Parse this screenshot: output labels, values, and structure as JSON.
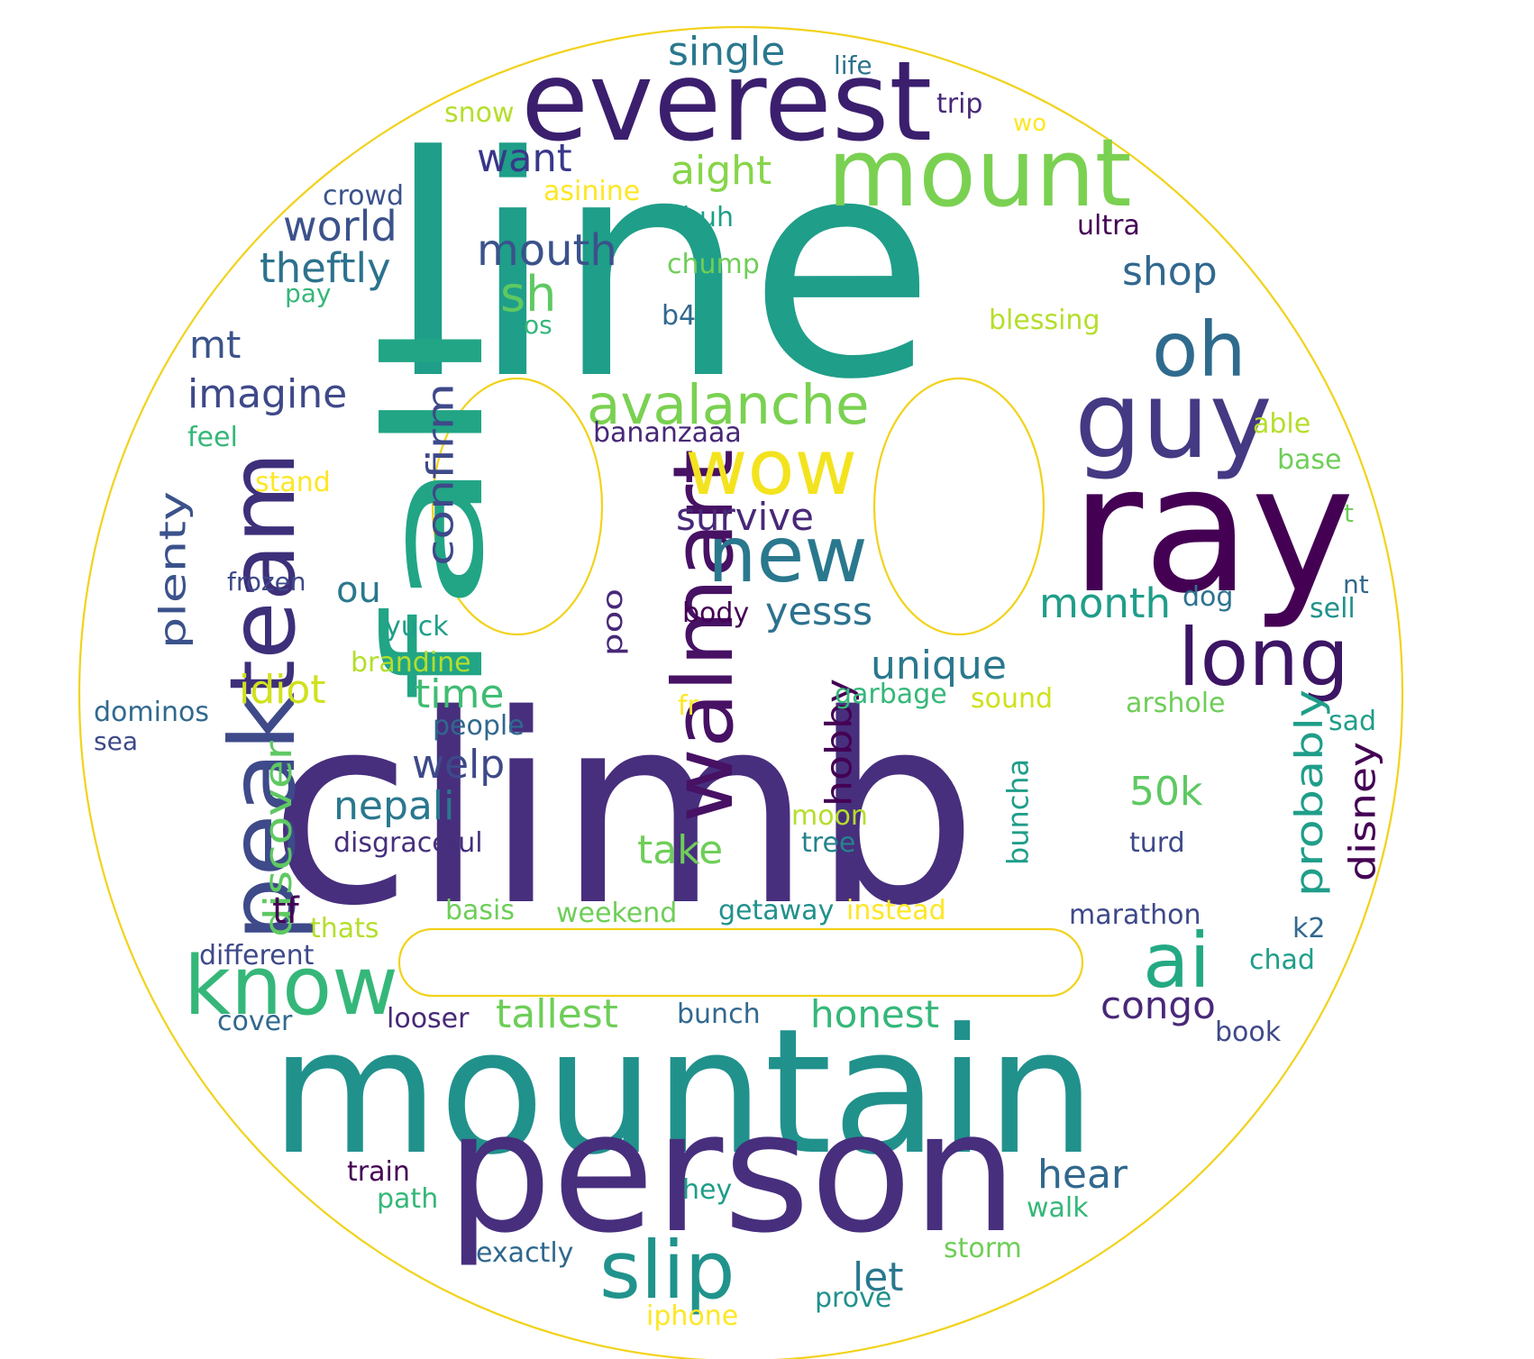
{
  "colors": {
    "outline": "#f2d21b",
    "background": "#ffffff",
    "palette": [
      "#440154",
      "#482878",
      "#3e4989",
      "#31688e",
      "#26828e",
      "#1f9e89",
      "#35b779",
      "#6ece58",
      "#b5de2b",
      "#fde725"
    ]
  },
  "words": [
    {
      "text": "line",
      "color": "#1f9e89"
    },
    {
      "text": "climb",
      "color": "#472f7d"
    },
    {
      "text": "mountain",
      "color": "#21918c"
    },
    {
      "text": "person",
      "color": "#472f7d"
    },
    {
      "text": "everest",
      "color": "#3b1f6e"
    },
    {
      "text": "ray",
      "color": "#440154"
    },
    {
      "text": "fall",
      "color": "#21a585"
    },
    {
      "text": "mount",
      "color": "#7ad151"
    },
    {
      "text": "guy",
      "color": "#443983"
    },
    {
      "text": "team",
      "color": "#3e2f7a"
    },
    {
      "text": "peak",
      "color": "#3e4a89"
    },
    {
      "text": "walmart",
      "color": "#471164"
    },
    {
      "text": "oh",
      "color": "#2f6b8e"
    },
    {
      "text": "wow",
      "color": "#f3e31f"
    },
    {
      "text": "new",
      "color": "#2a788e"
    },
    {
      "text": "long",
      "color": "#3c1564"
    },
    {
      "text": "know",
      "color": "#35b779"
    },
    {
      "text": "ai",
      "color": "#23a983"
    },
    {
      "text": "slip",
      "color": "#20938c"
    },
    {
      "text": "avalanche",
      "color": "#7ad151"
    },
    {
      "text": "single",
      "color": "#2a788e"
    },
    {
      "text": "sh",
      "color": "#5ec962"
    },
    {
      "text": "mouth",
      "color": "#3b528b"
    },
    {
      "text": "want",
      "color": "#39378a"
    },
    {
      "text": "aight",
      "color": "#86d549"
    },
    {
      "text": "world",
      "color": "#3b528b"
    },
    {
      "text": "theftly",
      "color": "#2c728e"
    },
    {
      "text": "imagine",
      "color": "#3e4989"
    },
    {
      "text": "confirm",
      "color": "#3e4989"
    },
    {
      "text": "plenty",
      "color": "#3b528b"
    },
    {
      "text": "survive",
      "color": "#482878"
    },
    {
      "text": "yesss",
      "color": "#2c728e"
    },
    {
      "text": "unique",
      "color": "#2a788e"
    },
    {
      "text": "month",
      "color": "#1f9e89"
    },
    {
      "text": "shop",
      "color": "#31688e"
    },
    {
      "text": "mt",
      "color": "#3b528b"
    },
    {
      "text": "idiot",
      "color": "#d0e11c"
    },
    {
      "text": "time",
      "color": "#3fbc73"
    },
    {
      "text": "welp",
      "color": "#3e4989"
    },
    {
      "text": "nepali",
      "color": "#2a788e"
    },
    {
      "text": "discover",
      "color": "#5ec962"
    },
    {
      "text": "hobby",
      "color": "#440154"
    },
    {
      "text": "probably",
      "color": "#1f9e89"
    },
    {
      "text": "disney",
      "color": "#440154"
    },
    {
      "text": "50k",
      "color": "#5ec962"
    },
    {
      "text": "take",
      "color": "#6ece58"
    },
    {
      "text": "tallest",
      "color": "#6ece58"
    },
    {
      "text": "honest",
      "color": "#35b779"
    },
    {
      "text": "congo",
      "color": "#482878"
    },
    {
      "text": "hear",
      "color": "#31688e"
    },
    {
      "text": "let",
      "color": "#2a788e"
    },
    {
      "text": "ou",
      "color": "#2a788e"
    },
    {
      "text": "tf",
      "color": "#440154"
    },
    {
      "text": "buncha",
      "color": "#1f9e89"
    },
    {
      "text": "poo",
      "color": "#482878"
    },
    {
      "text": "life",
      "color": "#2c728e"
    },
    {
      "text": "trip",
      "color": "#482878"
    },
    {
      "text": "wo",
      "color": "#fde725"
    },
    {
      "text": "snow",
      "color": "#b5de2b"
    },
    {
      "text": "asinine",
      "color": "#fde725"
    },
    {
      "text": "huh",
      "color": "#1f9e89"
    },
    {
      "text": "crowd",
      "color": "#3b528b"
    },
    {
      "text": "ultra",
      "color": "#440154"
    },
    {
      "text": "chump",
      "color": "#6ece58"
    },
    {
      "text": "pay",
      "color": "#35b779"
    },
    {
      "text": "b4",
      "color": "#31688e"
    },
    {
      "text": "os",
      "color": "#35b779"
    },
    {
      "text": "blessing",
      "color": "#b5de2b"
    },
    {
      "text": "bananzaaa",
      "color": "#482878"
    },
    {
      "text": "feel",
      "color": "#35b779"
    },
    {
      "text": "able",
      "color": "#b5de2b"
    },
    {
      "text": "base",
      "color": "#6ece58"
    },
    {
      "text": "stand",
      "color": "#fde725"
    },
    {
      "text": "t",
      "color": "#6ece58"
    },
    {
      "text": "frozen",
      "color": "#3e4989"
    },
    {
      "text": "nt",
      "color": "#31688e"
    },
    {
      "text": "dog",
      "color": "#2c728e"
    },
    {
      "text": "sell",
      "color": "#21918c"
    },
    {
      "text": "body",
      "color": "#440154"
    },
    {
      "text": "yuck",
      "color": "#1f9e89"
    },
    {
      "text": "brandine",
      "color": "#b5de2b"
    },
    {
      "text": "garbage",
      "color": "#35b779"
    },
    {
      "text": "sound",
      "color": "#d0e11c"
    },
    {
      "text": "arshole",
      "color": "#6ece58"
    },
    {
      "text": "fr",
      "color": "#fde725"
    },
    {
      "text": "sad",
      "color": "#1f9e89"
    },
    {
      "text": "dominos",
      "color": "#31688e"
    },
    {
      "text": "sea",
      "color": "#3e4989"
    },
    {
      "text": "people",
      "color": "#31688e"
    },
    {
      "text": "moon",
      "color": "#b5de2b"
    },
    {
      "text": "tree",
      "color": "#26828e"
    },
    {
      "text": "turd",
      "color": "#3e4989"
    },
    {
      "text": "disgraceful",
      "color": "#472f7d"
    },
    {
      "text": "thats",
      "color": "#b5de2b"
    },
    {
      "text": "basis",
      "color": "#6ece58"
    },
    {
      "text": "weekend",
      "color": "#6ece58"
    },
    {
      "text": "getaway",
      "color": "#21918c"
    },
    {
      "text": "instead",
      "color": "#fde725"
    },
    {
      "text": "marathon",
      "color": "#3e4989"
    },
    {
      "text": "k2",
      "color": "#31688e"
    },
    {
      "text": "different",
      "color": "#3e4989"
    },
    {
      "text": "chad",
      "color": "#1f9e89"
    },
    {
      "text": "cover",
      "color": "#31688e"
    },
    {
      "text": "looser",
      "color": "#482878"
    },
    {
      "text": "bunch",
      "color": "#31688e"
    },
    {
      "text": "book",
      "color": "#3e4989"
    },
    {
      "text": "train",
      "color": "#440154"
    },
    {
      "text": "path",
      "color": "#35b779"
    },
    {
      "text": "hey",
      "color": "#1f9e89"
    },
    {
      "text": "walk",
      "color": "#35b779"
    },
    {
      "text": "exactly",
      "color": "#31688e"
    },
    {
      "text": "storm",
      "color": "#6ece58"
    },
    {
      "text": "prove",
      "color": "#21918c"
    },
    {
      "text": "iphone",
      "color": "#fde725"
    }
  ]
}
